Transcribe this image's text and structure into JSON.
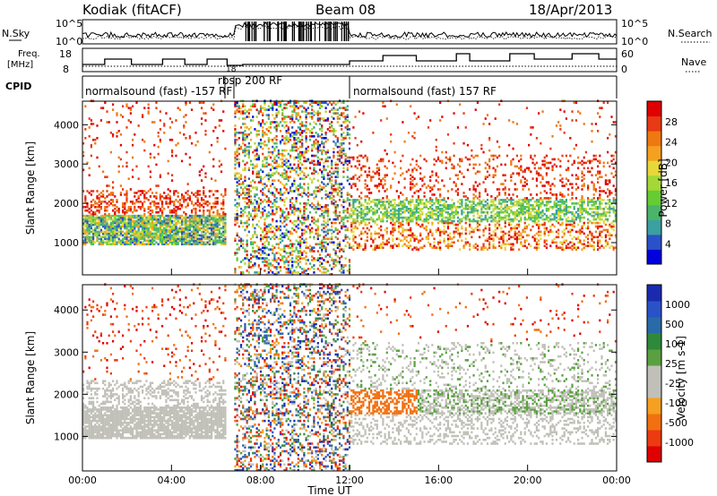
{
  "header": {
    "station": "Kodiak (fitACF)",
    "beam": "Beam 08",
    "date": "18/Apr/2013"
  },
  "summary_panels": {
    "noise": {
      "left_label": "N.Sky",
      "right_label": "N.Search",
      "ticks": [
        "10^5",
        "10^0"
      ]
    },
    "freq": {
      "left_label_1": "Freq.",
      "left_label_2": "[MHz]",
      "left_ticks": [
        "18",
        "8"
      ],
      "right_label": "Nave",
      "right_ticks": [
        "60",
        "0"
      ]
    },
    "cpid": {
      "label": "CPID",
      "segments": [
        {
          "text": "normalsound (fast) -157 RF",
          "start": 0,
          "end": 6.4
        },
        {
          "text": "18",
          "start": 6.4,
          "end": 6.8
        },
        {
          "text": "rbsp 200 RF",
          "start": 6.8,
          "end": 12.0
        },
        {
          "text": "normalsound (fast) 157 RF",
          "start": 12.0,
          "end": 24.0
        }
      ]
    }
  },
  "chart_data": [
    {
      "type": "heatmap",
      "title": "",
      "ylabel": "Slant Range [km]",
      "ylim": [
        180,
        4600
      ],
      "yticks": [
        1000,
        2000,
        3000,
        4000
      ],
      "x_time_range": [
        "00:00",
        "00:00"
      ],
      "colorbar": {
        "label": "Power [dB]",
        "range": [
          0,
          32
        ],
        "ticks": [
          4,
          8,
          12,
          16,
          20,
          24,
          28
        ],
        "colors": [
          "#0000dd",
          "#2a52c8",
          "#3aa0a0",
          "#4ab56a",
          "#66cc33",
          "#a4d836",
          "#e6d83a",
          "#f5a020",
          "#f07810",
          "#e83a14",
          "#e00000"
        ]
      }
    },
    {
      "type": "heatmap",
      "title": "",
      "xlabel": "Time UT",
      "ylabel": "Slant Range [km]",
      "ylim": [
        180,
        4600
      ],
      "yticks": [
        1000,
        2000,
        3000,
        4000
      ],
      "xticks": [
        "00:00",
        "04:00",
        "08:00",
        "12:00",
        "16:00",
        "20:00",
        "00:00"
      ],
      "colorbar": {
        "label": "Velocity [m s-1]",
        "range": [
          -1200,
          1200
        ],
        "ticks": [
          "1000",
          "500",
          "100",
          "25",
          "-25",
          "-100",
          "-500",
          "-1000"
        ],
        "colors": [
          "#e00000",
          "#ee3a10",
          "#f27010",
          "#f5a020",
          "#c0c0b8",
          "#c0c0b8",
          "#5aa040",
          "#2e8a3a",
          "#2a6aa8",
          "#2a52c8",
          "#1a2ab0"
        ]
      }
    }
  ]
}
